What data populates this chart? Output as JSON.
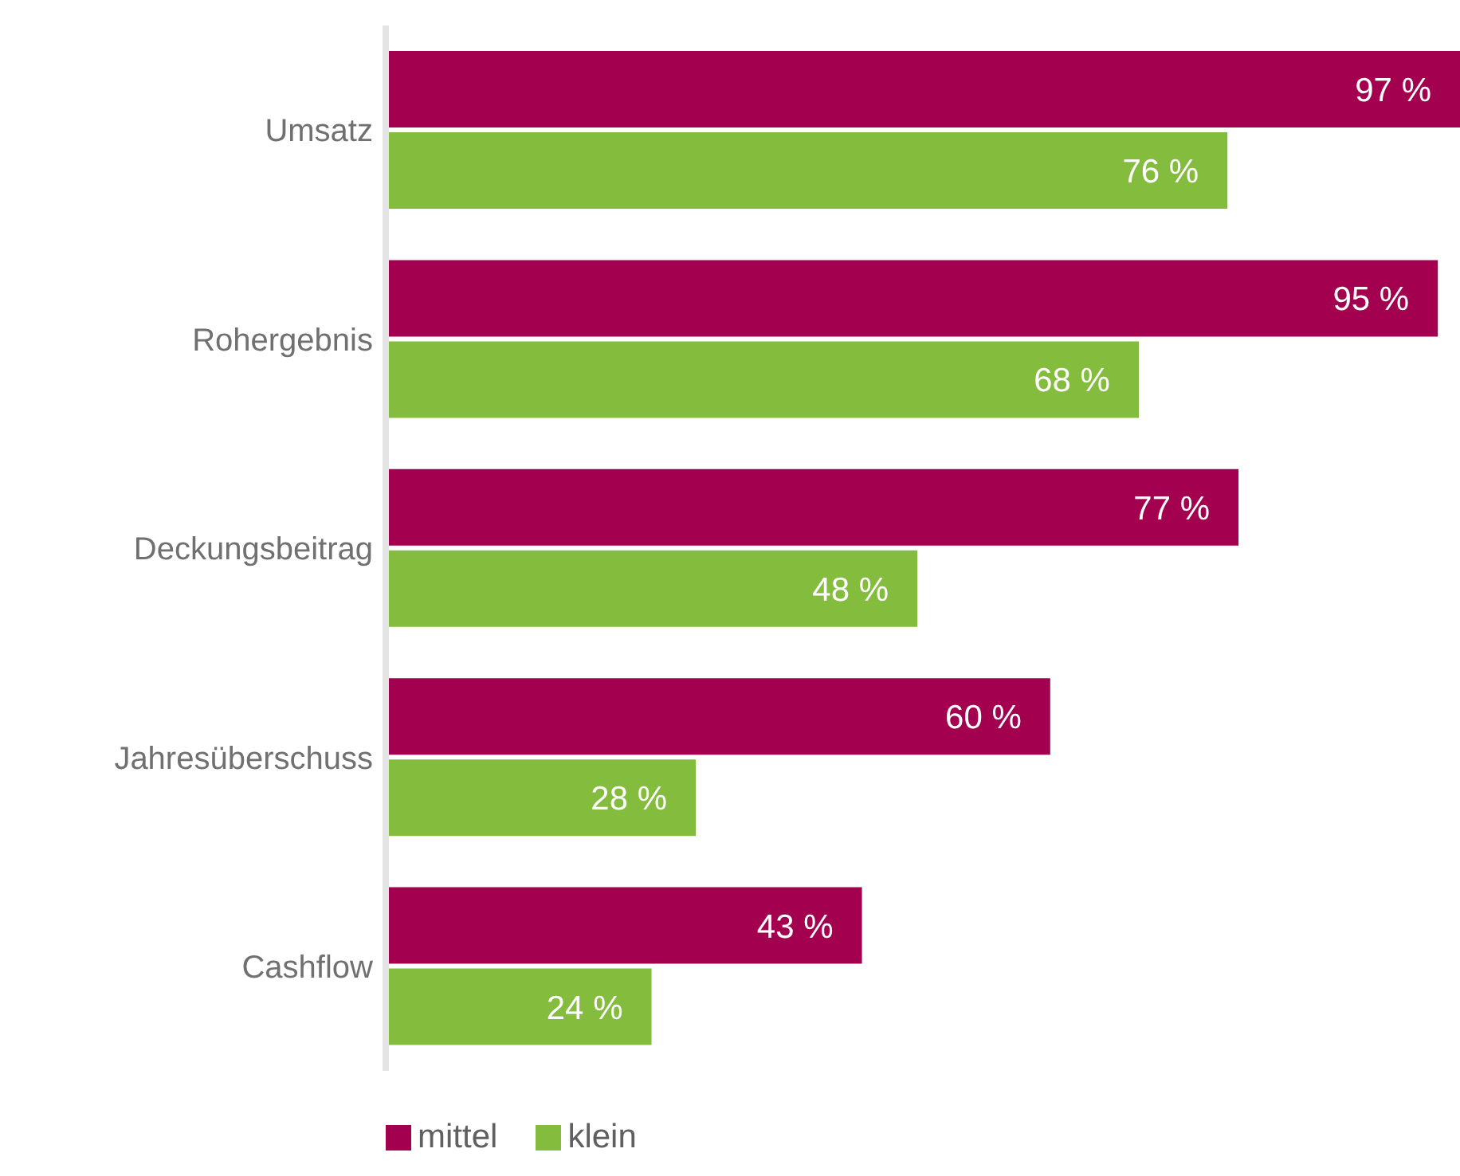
{
  "chart_data": {
    "type": "bar",
    "orientation": "horizontal",
    "categories": [
      "Umsatz",
      "Rohergebnis",
      "Deckungsbeitrag",
      "Jahresüberschuss",
      "Cashflow"
    ],
    "series": [
      {
        "name": "mittel",
        "color": "#a3004f",
        "values": [
          97,
          95,
          77,
          60,
          43
        ],
        "value_labels": [
          "97 %",
          "95 %",
          "77 %",
          "60 %",
          "43 %"
        ]
      },
      {
        "name": "klein",
        "color": "#84bc3d",
        "values": [
          76,
          68,
          48,
          28,
          24
        ],
        "value_labels": [
          "76 %",
          "68 %",
          "48 %",
          "28 %",
          "24 %"
        ]
      }
    ],
    "legend": "bottom left",
    "grid": false
  }
}
